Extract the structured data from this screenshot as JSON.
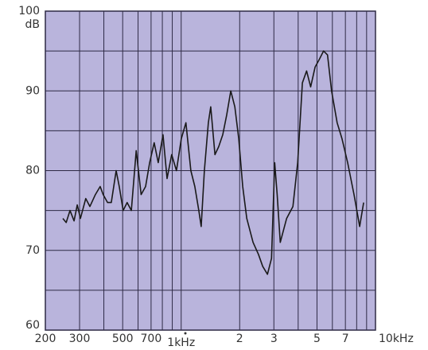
{
  "chart_data": {
    "type": "line",
    "log_x": true,
    "grid": true,
    "color": "#1a1a1a",
    "y_label": "dB",
    "xlim": [
      200,
      10000
    ],
    "ylim": [
      60,
      100
    ],
    "xticks": [
      200,
      300,
      500,
      700,
      {
        "value": 1000,
        "label": "1kHz"
      },
      {
        "value": 2000,
        "label": "2"
      },
      {
        "value": 3000,
        "label": "3"
      },
      {
        "value": 5000,
        "label": "5"
      },
      {
        "value": 7000,
        "label": "7"
      },
      {
        "value": 10000,
        "label": "10kHz"
      }
    ],
    "xgrid": [
      200,
      300,
      400,
      500,
      600,
      700,
      800,
      900,
      1000,
      2000,
      3000,
      4000,
      5000,
      6000,
      7000,
      8000,
      9000
    ],
    "yticks": [
      60,
      70,
      80,
      90,
      100
    ],
    "ygrid": [
      60,
      65,
      70,
      75,
      80,
      85,
      90,
      95,
      100
    ],
    "x": [
      246,
      256,
      268,
      281,
      292,
      303,
      323,
      339,
      362,
      383,
      397,
      418,
      437,
      463,
      480,
      503,
      527,
      554,
      587,
      622,
      656,
      688,
      726,
      762,
      806,
      846,
      894,
      946,
      1002,
      1058,
      1122,
      1176,
      1232,
      1268,
      1316,
      1380,
      1420,
      1492,
      1560,
      1636,
      1716,
      1800,
      1888,
      1979,
      2074,
      2176,
      2345,
      2500,
      2626,
      2780,
      2916,
      3030,
      3120,
      3236,
      3490,
      3760,
      3977,
      4206,
      4419,
      4638,
      4888,
      5152,
      5401,
      5666,
      5945,
      6350,
      6724,
      7191,
      7750,
      8286,
      8686
    ],
    "values": [
      74,
      73.5,
      75,
      73.7,
      75.7,
      74,
      76.5,
      75.5,
      77,
      78,
      77,
      76,
      76,
      80,
      78,
      75,
      76,
      75,
      82.5,
      77,
      78,
      81,
      83.5,
      81,
      84.5,
      79,
      82,
      80,
      84,
      86,
      80,
      78,
      75,
      73,
      80,
      86,
      88,
      82,
      83,
      84.5,
      87,
      90,
      88,
      84,
      78,
      74,
      71,
      69.5,
      68,
      67,
      69,
      81,
      77,
      71,
      74,
      75.5,
      81,
      91,
      92.5,
      90.5,
      93,
      94,
      95,
      94.5,
      90,
      86,
      84,
      81,
      77,
      73,
      76
    ]
  }
}
